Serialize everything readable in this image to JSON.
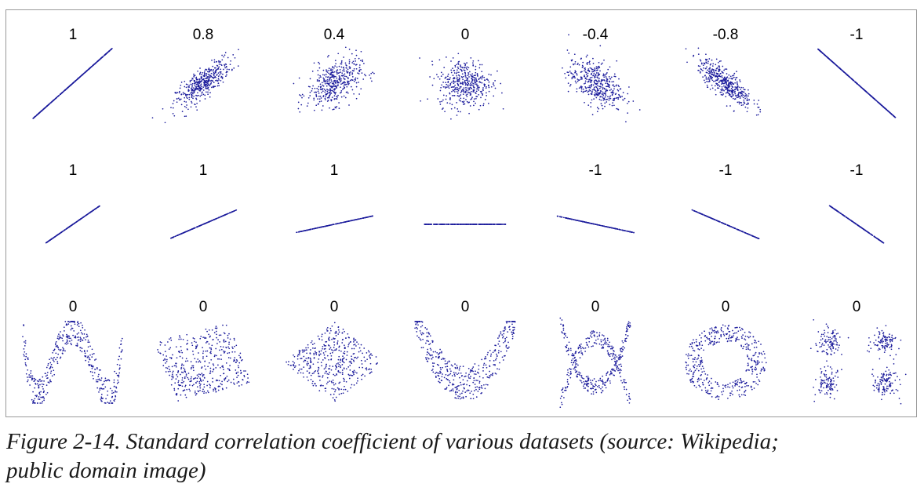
{
  "chart_data": {
    "type": "scatter",
    "title": "Standard correlation coefficient of various datasets",
    "point_color": "#1c1c9c",
    "grid": false,
    "rows": [
      [
        {
          "label": "1",
          "kind": "gauss",
          "r": 1.0
        },
        {
          "label": "0.8",
          "kind": "gauss",
          "r": 0.8
        },
        {
          "label": "0.4",
          "kind": "gauss",
          "r": 0.4
        },
        {
          "label": "0",
          "kind": "gauss",
          "r": 0.0
        },
        {
          "label": "-0.4",
          "kind": "gauss",
          "r": -0.4
        },
        {
          "label": "-0.8",
          "kind": "gauss",
          "r": -0.8
        },
        {
          "label": "-1",
          "kind": "gauss",
          "r": -1.0
        }
      ],
      [
        {
          "label": "1",
          "kind": "line",
          "slope": 0.8
        },
        {
          "label": "1",
          "kind": "line",
          "slope": 0.5
        },
        {
          "label": "1",
          "kind": "line",
          "slope": 0.25
        },
        {
          "label": "",
          "kind": "line",
          "slope": 0
        },
        {
          "label": "-1",
          "kind": "line",
          "slope": -0.25
        },
        {
          "label": "-1",
          "kind": "line",
          "slope": -0.5
        },
        {
          "label": "-1",
          "kind": "line",
          "slope": -0.8
        }
      ],
      [
        {
          "label": "0",
          "kind": "wave"
        },
        {
          "label": "0",
          "kind": "tilted-square"
        },
        {
          "label": "0",
          "kind": "diamond"
        },
        {
          "label": "0",
          "kind": "parabola"
        },
        {
          "label": "0",
          "kind": "x-shape"
        },
        {
          "label": "0",
          "kind": "ring"
        },
        {
          "label": "0",
          "kind": "four-clusters"
        }
      ]
    ]
  },
  "caption": {
    "line1": "Figure 2-14. Standard correlation coefficient of various datasets (source: Wikipedia;",
    "line2": "public domain image)"
  }
}
